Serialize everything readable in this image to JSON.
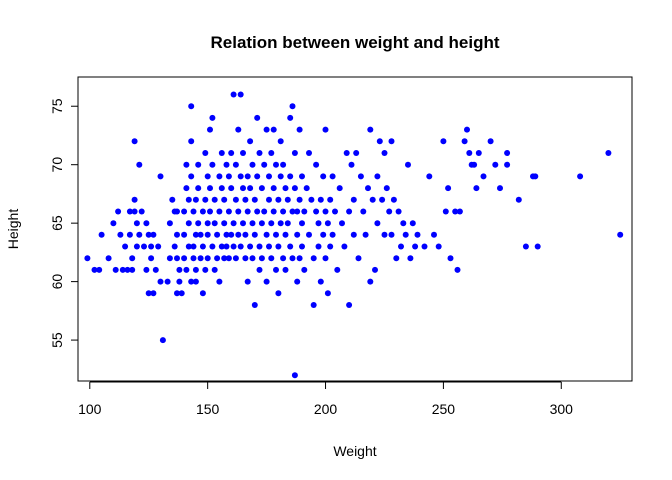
{
  "chart_data": {
    "type": "scatter",
    "title": "Relation between weight and height",
    "xlabel": "Weight",
    "ylabel": "Height",
    "xlim": [
      95,
      330
    ],
    "ylim": [
      51.5,
      77.5
    ],
    "xticks": [
      100,
      150,
      200,
      250,
      300
    ],
    "yticks": [
      55,
      60,
      65,
      70,
      75
    ],
    "grid": false,
    "legend": "none",
    "point_color": "#0000ff",
    "series": [
      {
        "points": [
          [
            99,
            62
          ],
          [
            102,
            61
          ],
          [
            104,
            61
          ],
          [
            105,
            64
          ],
          [
            108,
            62
          ],
          [
            110,
            65
          ],
          [
            111,
            61
          ],
          [
            112,
            66
          ],
          [
            113,
            64
          ],
          [
            114,
            61
          ],
          [
            115,
            63
          ],
          [
            116,
            61
          ],
          [
            117,
            64
          ],
          [
            117,
            66
          ],
          [
            118,
            62
          ],
          [
            118,
            61
          ],
          [
            119,
            72
          ],
          [
            119,
            67
          ],
          [
            119,
            66
          ],
          [
            120,
            65
          ],
          [
            120,
            63
          ],
          [
            121,
            70
          ],
          [
            121,
            64
          ],
          [
            122,
            66
          ],
          [
            123,
            63
          ],
          [
            124,
            65
          ],
          [
            124,
            61
          ],
          [
            125,
            59
          ],
          [
            125,
            64
          ],
          [
            126,
            63
          ],
          [
            126,
            62
          ],
          [
            127,
            59
          ],
          [
            127,
            64
          ],
          [
            128,
            61
          ],
          [
            129,
            63
          ],
          [
            130,
            69
          ],
          [
            130,
            60
          ],
          [
            131,
            55
          ],
          [
            133,
            60
          ],
          [
            134,
            62
          ],
          [
            134,
            65
          ],
          [
            135,
            67
          ],
          [
            136,
            66
          ],
          [
            136,
            63
          ],
          [
            137,
            59
          ],
          [
            137,
            62
          ],
          [
            137,
            66
          ],
          [
            137,
            64
          ],
          [
            138,
            60
          ],
          [
            138,
            61
          ],
          [
            139,
            59
          ],
          [
            140,
            62
          ],
          [
            140,
            64
          ],
          [
            140,
            66
          ],
          [
            141,
            68
          ],
          [
            141,
            70
          ],
          [
            141,
            61
          ],
          [
            142,
            63
          ],
          [
            142,
            65
          ],
          [
            142,
            67
          ],
          [
            143,
            60
          ],
          [
            143,
            75
          ],
          [
            143,
            69
          ],
          [
            143,
            72
          ],
          [
            144,
            63
          ],
          [
            144,
            66
          ],
          [
            144,
            62
          ],
          [
            145,
            64
          ],
          [
            145,
            67
          ],
          [
            145,
            60
          ],
          [
            145,
            61
          ],
          [
            146,
            70
          ],
          [
            146,
            68
          ],
          [
            146,
            65
          ],
          [
            147,
            62
          ],
          [
            147,
            64
          ],
          [
            148,
            66
          ],
          [
            148,
            63
          ],
          [
            148,
            59
          ],
          [
            149,
            71
          ],
          [
            149,
            67
          ],
          [
            149,
            61
          ],
          [
            150,
            65
          ],
          [
            150,
            69
          ],
          [
            150,
            62
          ],
          [
            150,
            64
          ],
          [
            151,
            73
          ],
          [
            151,
            68
          ],
          [
            151,
            66
          ],
          [
            152,
            74
          ],
          [
            152,
            63
          ],
          [
            152,
            70
          ],
          [
            153,
            65
          ],
          [
            153,
            61
          ],
          [
            153,
            67
          ],
          [
            154,
            64
          ],
          [
            154,
            62
          ],
          [
            155,
            69
          ],
          [
            155,
            60
          ],
          [
            155,
            66
          ],
          [
            156,
            63
          ],
          [
            156,
            68
          ],
          [
            156,
            71
          ],
          [
            157,
            65
          ],
          [
            157,
            62
          ],
          [
            157,
            67
          ],
          [
            158,
            64
          ],
          [
            158,
            70
          ],
          [
            158,
            63
          ],
          [
            159,
            69
          ],
          [
            159,
            66
          ],
          [
            159,
            62
          ],
          [
            160,
            68
          ],
          [
            160,
            64
          ],
          [
            160,
            71
          ],
          [
            161,
            76
          ],
          [
            161,
            65
          ],
          [
            161,
            63
          ],
          [
            162,
            67
          ],
          [
            162,
            70
          ],
          [
            162,
            62
          ],
          [
            163,
            73
          ],
          [
            163,
            66
          ],
          [
            163,
            64
          ],
          [
            164,
            69
          ],
          [
            164,
            76
          ],
          [
            164,
            63
          ],
          [
            165,
            68
          ],
          [
            165,
            65
          ],
          [
            165,
            71
          ],
          [
            166,
            62
          ],
          [
            166,
            67
          ],
          [
            166,
            64
          ],
          [
            167,
            69
          ],
          [
            167,
            66
          ],
          [
            167,
            60
          ],
          [
            168,
            72
          ],
          [
            168,
            68
          ],
          [
            168,
            63
          ],
          [
            169,
            65
          ],
          [
            169,
            70
          ],
          [
            169,
            62
          ],
          [
            170,
            67
          ],
          [
            170,
            64
          ],
          [
            170,
            58
          ],
          [
            171,
            74
          ],
          [
            171,
            69
          ],
          [
            171,
            66
          ],
          [
            172,
            63
          ],
          [
            172,
            71
          ],
          [
            172,
            61
          ],
          [
            173,
            68
          ],
          [
            173,
            65
          ],
          [
            173,
            62
          ],
          [
            174,
            70
          ],
          [
            174,
            66
          ],
          [
            175,
            73
          ],
          [
            175,
            64
          ],
          [
            175,
            60
          ],
          [
            176,
            67
          ],
          [
            176,
            69
          ],
          [
            176,
            63
          ],
          [
            177,
            65
          ],
          [
            177,
            71
          ],
          [
            177,
            62
          ],
          [
            178,
            73
          ],
          [
            178,
            68
          ],
          [
            178,
            66
          ],
          [
            179,
            64
          ],
          [
            179,
            70
          ],
          [
            179,
            61
          ],
          [
            180,
            67
          ],
          [
            180,
            63
          ],
          [
            180,
            59
          ],
          [
            181,
            72
          ],
          [
            181,
            69
          ],
          [
            181,
            65
          ],
          [
            182,
            66
          ],
          [
            182,
            62
          ],
          [
            182,
            70
          ],
          [
            183,
            68
          ],
          [
            183,
            64
          ],
          [
            183,
            61
          ],
          [
            184,
            67
          ],
          [
            184,
            65
          ],
          [
            185,
            74
          ],
          [
            185,
            63
          ],
          [
            185,
            69
          ],
          [
            186,
            75
          ],
          [
            186,
            66
          ],
          [
            186,
            62
          ],
          [
            187,
            71
          ],
          [
            187,
            52
          ],
          [
            187,
            68
          ],
          [
            188,
            64
          ],
          [
            188,
            66
          ],
          [
            188,
            60
          ],
          [
            189,
            73
          ],
          [
            189,
            67
          ],
          [
            189,
            62
          ],
          [
            190,
            65
          ],
          [
            190,
            69
          ],
          [
            190,
            63
          ],
          [
            191,
            66
          ],
          [
            191,
            61
          ],
          [
            192,
            68
          ],
          [
            193,
            71
          ],
          [
            193,
            64
          ],
          [
            194,
            67
          ],
          [
            195,
            58
          ],
          [
            195,
            62
          ],
          [
            196,
            66
          ],
          [
            196,
            70
          ],
          [
            197,
            65
          ],
          [
            197,
            63
          ],
          [
            198,
            67
          ],
          [
            198,
            60
          ],
          [
            199,
            64
          ],
          [
            199,
            69
          ],
          [
            200,
            73
          ],
          [
            200,
            66
          ],
          [
            200,
            62
          ],
          [
            201,
            65
          ],
          [
            201,
            59
          ],
          [
            202,
            67
          ],
          [
            202,
            63
          ],
          [
            203,
            69
          ],
          [
            203,
            64
          ],
          [
            204,
            66
          ],
          [
            205,
            61
          ],
          [
            206,
            68
          ],
          [
            207,
            65
          ],
          [
            208,
            63
          ],
          [
            209,
            71
          ],
          [
            210,
            58
          ],
          [
            210,
            66
          ],
          [
            211,
            70
          ],
          [
            212,
            64
          ],
          [
            212,
            67
          ],
          [
            213,
            71
          ],
          [
            214,
            62
          ],
          [
            215,
            69
          ],
          [
            216,
            66
          ],
          [
            217,
            64
          ],
          [
            218,
            68
          ],
          [
            219,
            60
          ],
          [
            219,
            73
          ],
          [
            220,
            67
          ],
          [
            221,
            61
          ],
          [
            222,
            65
          ],
          [
            222,
            69
          ],
          [
            223,
            72
          ],
          [
            224,
            67
          ],
          [
            225,
            64
          ],
          [
            225,
            71
          ],
          [
            226,
            68
          ],
          [
            227,
            66
          ],
          [
            228,
            64
          ],
          [
            228,
            72
          ],
          [
            229,
            67
          ],
          [
            230,
            62
          ],
          [
            231,
            66
          ],
          [
            232,
            63
          ],
          [
            233,
            65
          ],
          [
            234,
            64
          ],
          [
            235,
            70
          ],
          [
            236,
            62
          ],
          [
            237,
            65
          ],
          [
            238,
            63
          ],
          [
            239,
            64
          ],
          [
            242,
            63
          ],
          [
            244,
            69
          ],
          [
            246,
            64
          ],
          [
            248,
            63
          ],
          [
            250,
            72
          ],
          [
            251,
            66
          ],
          [
            252,
            68
          ],
          [
            253,
            62
          ],
          [
            255,
            66
          ],
          [
            256,
            61
          ],
          [
            257,
            66
          ],
          [
            259,
            72
          ],
          [
            260,
            73
          ],
          [
            261,
            71
          ],
          [
            262,
            70
          ],
          [
            263,
            70
          ],
          [
            264,
            68
          ],
          [
            265,
            71
          ],
          [
            267,
            69
          ],
          [
            270,
            72
          ],
          [
            272,
            70
          ],
          [
            274,
            68
          ],
          [
            277,
            71
          ],
          [
            277,
            70
          ],
          [
            282,
            67
          ],
          [
            285,
            63
          ],
          [
            288,
            69
          ],
          [
            289,
            69
          ],
          [
            290,
            63
          ],
          [
            308,
            69
          ],
          [
            320,
            71
          ],
          [
            325,
            64
          ]
        ]
      }
    ]
  }
}
